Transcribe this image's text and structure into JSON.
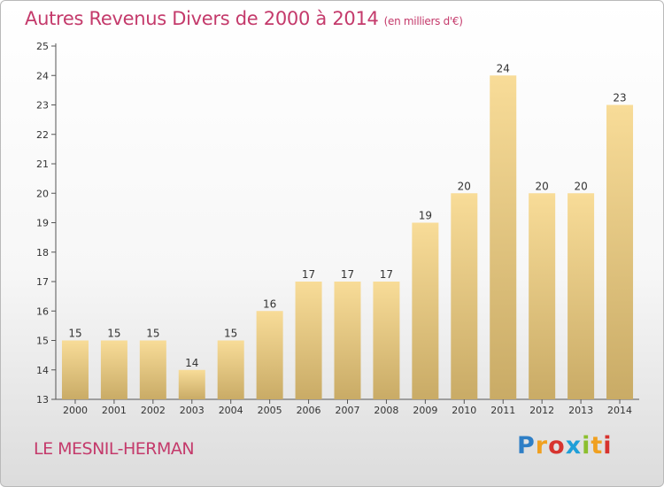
{
  "header": {
    "title": "Autres Revenus Divers de 2000 à 2014",
    "subtitle": "(en milliers d'€)"
  },
  "footer": {
    "commune": "LE MESNIL-HERMAN",
    "logo_letters": [
      "P",
      "r",
      "o",
      "x",
      "i",
      "t",
      "i"
    ],
    "logo_colors": [
      "#2f7fc6",
      "#f0a020",
      "#d7342f",
      "#1f9fd8",
      "#8cbf2f",
      "#f0a020",
      "#d7342f"
    ]
  },
  "colors": {
    "accent": "#c43a6b",
    "bar_light": "#f8dc98",
    "bar_dark": "#c9ab66"
  },
  "chart_data": {
    "type": "bar",
    "categories": [
      "2000",
      "2001",
      "2002",
      "2003",
      "2004",
      "2005",
      "2006",
      "2007",
      "2008",
      "2009",
      "2010",
      "2011",
      "2012",
      "2013",
      "2014"
    ],
    "values": [
      15,
      15,
      15,
      14,
      15,
      16,
      17,
      17,
      17,
      19,
      20,
      24,
      20,
      20,
      23
    ],
    "title": "Autres Revenus Divers de 2000 à 2014",
    "xlabel": "",
    "ylabel": "",
    "ylim": [
      13,
      25
    ],
    "yticks": [
      13,
      14,
      15,
      16,
      17,
      18,
      19,
      20,
      21,
      22,
      23,
      24,
      25
    ],
    "grid": false,
    "data_labels": true
  }
}
